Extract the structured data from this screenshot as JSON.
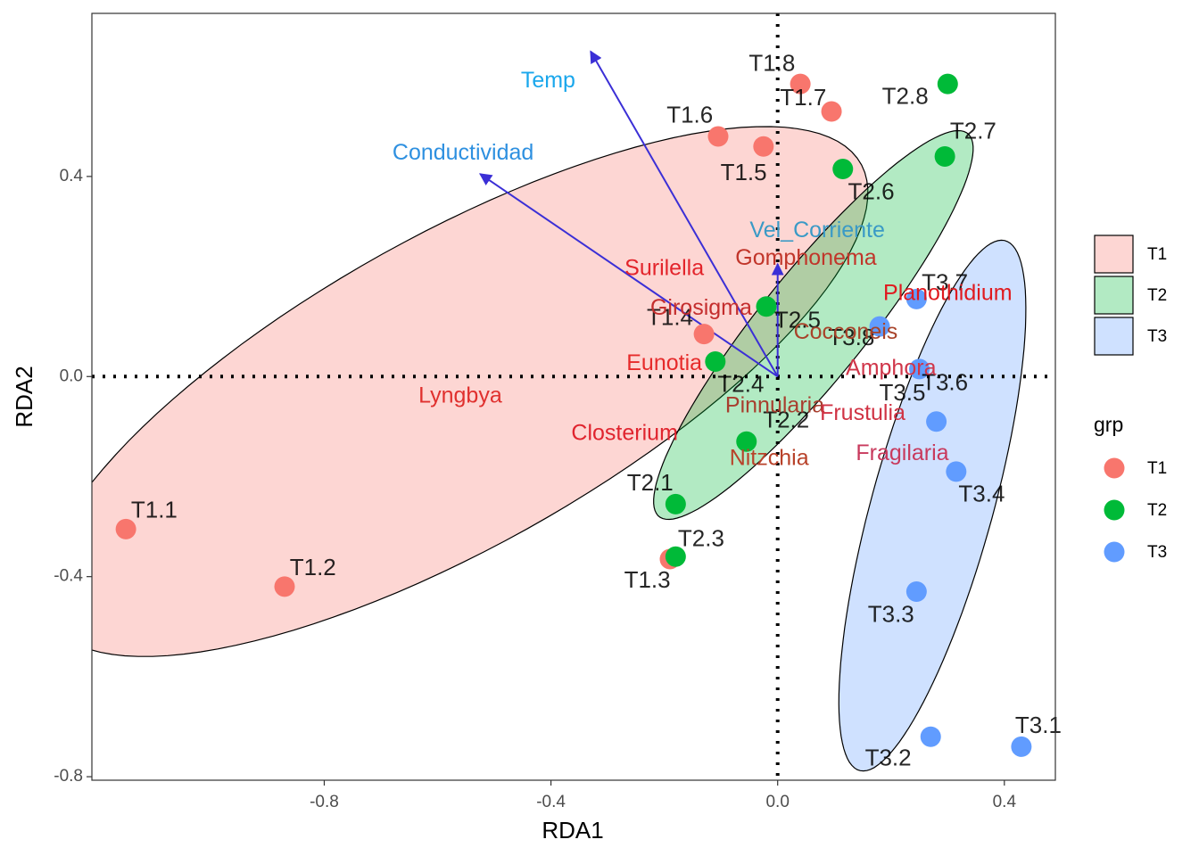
{
  "chart_data": {
    "type": "scatter",
    "title": "",
    "xlabel": "RDA1",
    "ylabel": "RDA2",
    "xlim": [
      -1.21,
      0.49
    ],
    "ylim": [
      -0.807,
      0.726
    ],
    "x_ticks": [
      -0.8,
      -0.4,
      0.0,
      0.4
    ],
    "x_tick_labels": [
      "-0.8",
      "-0.4",
      "0.0",
      "0.4"
    ],
    "y_ticks": [
      -0.8,
      -0.4,
      0.0,
      0.4
    ],
    "y_tick_labels": [
      "-0.8",
      "-0.4",
      "0.0",
      "0.4"
    ],
    "grid": false,
    "reference_lines": {
      "x": 0,
      "y": 0,
      "style": "dotted"
    },
    "legend_position": "right",
    "colors": {
      "T1": "#F8766D",
      "T2": "#00BA38",
      "T3": "#619CFF"
    },
    "ellipses": [
      {
        "group": "T1",
        "center": [
          -0.57,
          -0.03
        ],
        "semi_axes": [
          0.85,
          0.3
        ],
        "angle_deg": 33.3
      },
      {
        "group": "T2",
        "center": [
          0.063,
          0.103
        ],
        "semi_axes": [
          0.47,
          0.098
        ],
        "angle_deg": 54.9
      },
      {
        "group": "T3",
        "center": [
          0.273,
          -0.258
        ],
        "semi_axes": [
          0.545,
          0.108
        ],
        "angle_deg": 76.5
      }
    ],
    "series": [
      {
        "name": "T1",
        "points": [
          {
            "label": "T1.1",
            "x": -1.15,
            "y": -0.305
          },
          {
            "label": "T1.2",
            "x": -0.87,
            "y": -0.42
          },
          {
            "label": "T1.3",
            "x": -0.19,
            "y": -0.365
          },
          {
            "label": "T1.4",
            "x": -0.13,
            "y": 0.085
          },
          {
            "label": "T1.5",
            "x": -0.025,
            "y": 0.46
          },
          {
            "label": "T1.6",
            "x": -0.105,
            "y": 0.48
          },
          {
            "label": "T1.7",
            "x": 0.095,
            "y": 0.53
          },
          {
            "label": "T1.8",
            "x": 0.04,
            "y": 0.585
          }
        ]
      },
      {
        "name": "T2",
        "points": [
          {
            "label": "T2.1",
            "x": -0.18,
            "y": -0.255
          },
          {
            "label": "T2.2",
            "x": -0.055,
            "y": -0.13
          },
          {
            "label": "T2.3",
            "x": -0.18,
            "y": -0.36
          },
          {
            "label": "T2.4",
            "x": -0.11,
            "y": 0.03
          },
          {
            "label": "T2.5",
            "x": -0.02,
            "y": 0.14
          },
          {
            "label": "T2.6",
            "x": 0.115,
            "y": 0.415
          },
          {
            "label": "T2.7",
            "x": 0.295,
            "y": 0.44
          },
          {
            "label": "T2.8",
            "x": 0.3,
            "y": 0.585
          }
        ]
      },
      {
        "name": "T3",
        "points": [
          {
            "label": "T3.1",
            "x": 0.43,
            "y": -0.74
          },
          {
            "label": "T3.2",
            "x": 0.27,
            "y": -0.72
          },
          {
            "label": "T3.3",
            "x": 0.245,
            "y": -0.43
          },
          {
            "label": "T3.4",
            "x": 0.315,
            "y": -0.19
          },
          {
            "label": "T3.5",
            "x": 0.28,
            "y": -0.09
          },
          {
            "label": "T3.6",
            "x": 0.25,
            "y": 0.015
          },
          {
            "label": "T3.7",
            "x": 0.245,
            "y": 0.155
          },
          {
            "label": "T3.8",
            "x": 0.18,
            "y": 0.1
          }
        ]
      }
    ],
    "arrows": [
      {
        "label": "Temp",
        "x": -0.33,
        "y": 0.65,
        "color": "#1AA7EC"
      },
      {
        "label": "Conductividad",
        "x": -0.525,
        "y": 0.405,
        "color": "#2E90E0"
      },
      {
        "label": "Vel_Corriente",
        "x": 0.0,
        "y": 0.225,
        "color": "#3A9AC6"
      }
    ],
    "species": [
      {
        "label": "Surilella",
        "x": -0.2,
        "y": 0.215,
        "color": "#E3242B"
      },
      {
        "label": "Gomphonema",
        "x": 0.05,
        "y": 0.235,
        "color": "#C1352A"
      },
      {
        "label": "Girosigma",
        "x": -0.135,
        "y": 0.135,
        "color": "#C42D2D"
      },
      {
        "label": "Planothidium",
        "x": 0.3,
        "y": 0.165,
        "color": "#E0191E"
      },
      {
        "label": "Cocconeis",
        "x": 0.12,
        "y": 0.087,
        "color": "#A8432A"
      },
      {
        "label": "Eunotia",
        "x": -0.2,
        "y": 0.025,
        "color": "#E62A2A"
      },
      {
        "label": "Amphora",
        "x": 0.2,
        "y": 0.015,
        "color": "#D0364A"
      },
      {
        "label": "Lyngbya",
        "x": -0.56,
        "y": -0.04,
        "color": "#E0302E"
      },
      {
        "label": "Pinnularia",
        "x": -0.005,
        "y": -0.06,
        "color": "#A83E2E"
      },
      {
        "label": "Frustulia",
        "x": 0.15,
        "y": -0.075,
        "color": "#D03344"
      },
      {
        "label": "Closterium",
        "x": -0.27,
        "y": -0.115,
        "color": "#E0242E"
      },
      {
        "label": "Fragilaria",
        "x": 0.22,
        "y": -0.155,
        "color": "#C8395C"
      },
      {
        "label": "Nitzchia",
        "x": -0.015,
        "y": -0.165,
        "color": "#B8422A"
      }
    ]
  },
  "legend": {
    "fill_keys": [
      {
        "label": "T1",
        "color": "#F8766D"
      },
      {
        "label": "T2",
        "color": "#00BA38"
      },
      {
        "label": "T3",
        "color": "#619CFF"
      }
    ],
    "title": "grp",
    "point_keys": [
      {
        "label": "T1",
        "color": "#F8766D"
      },
      {
        "label": "T2",
        "color": "#00BA38"
      },
      {
        "label": "T3",
        "color": "#619CFF"
      }
    ]
  }
}
